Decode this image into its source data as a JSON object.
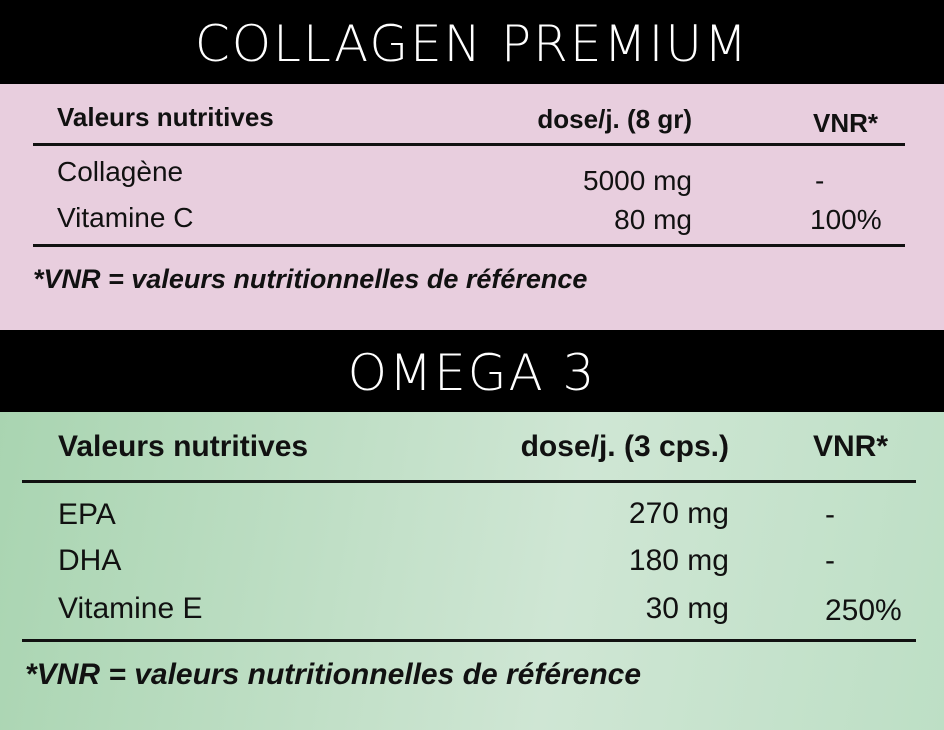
{
  "sections": [
    {
      "title": "COLLAGEN PREMIUM",
      "header": [
        "Valeurs nutritives",
        "dose/j. (8 gr)",
        "VNR*"
      ],
      "rows": [
        [
          "Collagène",
          "5000 mg",
          "-"
        ],
        [
          "Vitamine C",
          "80 mg",
          "100%"
        ]
      ],
      "footnote": "*VNR = valeurs nutritionnelles de référence"
    },
    {
      "title": "OMEGA 3",
      "header": [
        "Valeurs nutritives",
        "dose/j. (3 cps.)",
        "VNR*"
      ],
      "rows": [
        [
          "EPA",
          "270 mg",
          "-"
        ],
        [
          "DHA",
          "180 mg",
          "-"
        ],
        [
          "Vitamine E",
          "30 mg",
          "250%"
        ]
      ],
      "footnote": "*VNR = valeurs nutritionnelles de référence"
    }
  ]
}
